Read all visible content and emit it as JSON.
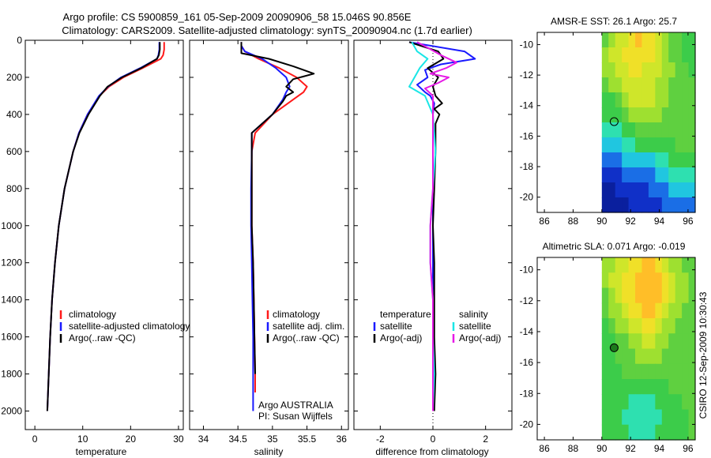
{
  "header": {
    "title_line1": "Argo profile: CS 5900859_161 05-Sep-2009 20090906_58 15.046S 90.856E",
    "title_line2": "Climatology: CARS2009. Satellite-adjusted climatology: synTS_20090904.nc (1.7d earlier)"
  },
  "colors": {
    "red": "#ff1a1a",
    "blue": "#1a1aff",
    "black": "#000000",
    "cyan": "#1ae6e6",
    "magenta": "#e61ae6"
  },
  "chart_data": [
    {
      "type": "line",
      "id": "temperature",
      "xlabel": "temperature",
      "xlim": [
        -2,
        31
      ],
      "ylim": [
        2100,
        0
      ],
      "xticks": [
        0,
        10,
        20,
        30
      ],
      "yticks": [
        0,
        200,
        400,
        600,
        800,
        1000,
        1200,
        1400,
        1600,
        1800,
        2000
      ],
      "series": [
        {
          "name": "climatology",
          "color": "red",
          "depth": [
            10,
            50,
            80,
            100,
            150,
            200,
            250,
            300,
            400,
            500,
            600,
            800,
            1000,
            1200,
            1400,
            1600,
            1800,
            2000
          ],
          "values": [
            27.0,
            27.0,
            26.8,
            26.3,
            22.5,
            18.5,
            15.5,
            13.5,
            11.0,
            9.2,
            8.0,
            6.2,
            5.0,
            4.2,
            3.6,
            3.2,
            2.9,
            2.6
          ]
        },
        {
          "name": "satellite-adjusted climatology",
          "color": "blue",
          "depth": [
            10,
            50,
            80,
            100,
            150,
            200,
            250,
            300,
            400,
            500,
            600,
            800,
            1000,
            1200,
            1400,
            1600,
            1800,
            2000
          ],
          "values": [
            26.0,
            26.0,
            25.8,
            25.5,
            22.0,
            18.0,
            15.3,
            13.4,
            11.0,
            9.2,
            8.0,
            6.2,
            5.0,
            4.2,
            3.6,
            3.2,
            2.9,
            2.6
          ]
        },
        {
          "name": "Argo(..raw -QC)",
          "color": "black",
          "depth": [
            10,
            50,
            80,
            100,
            150,
            200,
            250,
            300,
            400,
            500,
            600,
            800,
            1000,
            1200,
            1400,
            1600,
            1800,
            2000
          ],
          "values": [
            26.1,
            26.1,
            25.9,
            25.5,
            22.2,
            18.2,
            15.2,
            13.6,
            11.2,
            9.3,
            8.0,
            6.2,
            5.0,
            4.2,
            3.6,
            3.2,
            2.9,
            2.6
          ]
        }
      ],
      "legend": {
        "position": "lower-right",
        "entries": [
          "climatology",
          "satellite-adjusted climatology",
          "Argo(..raw -QC)"
        ]
      }
    },
    {
      "type": "line",
      "id": "salinity",
      "xlabel": "salinity",
      "xlim": [
        33.8,
        36.1
      ],
      "ylim": [
        2100,
        0
      ],
      "xticks": [
        34,
        34.5,
        35,
        35.5,
        36
      ],
      "yticks": [
        0,
        200,
        400,
        600,
        800,
        1000,
        1200,
        1400,
        1600,
        1800,
        2000
      ],
      "series": [
        {
          "name": "climatology",
          "color": "red",
          "depth": [
            10,
            30,
            60,
            100,
            150,
            200,
            250,
            280,
            320,
            400,
            500,
            600,
            800,
            1000,
            1200,
            1400,
            1600,
            1800,
            1900
          ],
          "values": [
            34.55,
            34.55,
            34.6,
            34.8,
            35.1,
            35.35,
            35.5,
            35.45,
            35.3,
            35.0,
            34.75,
            34.7,
            34.7,
            34.7,
            34.72,
            34.73,
            34.74,
            34.75,
            34.75
          ]
        },
        {
          "name": "satellite adj. clim.",
          "color": "blue",
          "depth": [
            10,
            30,
            60,
            100,
            150,
            200,
            250,
            280,
            320,
            400,
            500,
            600,
            800,
            1000,
            1200,
            1400,
            1600,
            1800,
            2000
          ],
          "values": [
            34.55,
            34.55,
            34.6,
            34.85,
            35.05,
            35.2,
            35.25,
            35.2,
            35.15,
            35.0,
            34.7,
            34.7,
            34.69,
            34.69,
            34.7,
            34.71,
            34.72,
            34.72,
            34.72
          ]
        },
        {
          "name": "Argo(..raw -QC)",
          "color": "black",
          "depth": [
            10,
            40,
            70,
            100,
            140,
            180,
            210,
            250,
            280,
            300,
            330,
            400,
            500,
            600,
            800,
            1000,
            1200,
            1400,
            1600,
            1800
          ],
          "values": [
            34.55,
            34.55,
            34.55,
            34.95,
            35.3,
            35.6,
            35.3,
            35.2,
            35.3,
            35.2,
            35.15,
            35.0,
            34.7,
            34.7,
            34.7,
            34.7,
            34.72,
            34.73,
            34.74,
            34.75
          ]
        }
      ],
      "legend": {
        "position": "lower-right",
        "entries": [
          "climatology",
          "satellite adj. clim.",
          "Argo(..raw -QC)"
        ]
      },
      "annotation": {
        "line1": "Argo AUSTRALIA",
        "line2": "PI: Susan Wijffels"
      }
    },
    {
      "type": "line",
      "id": "difference",
      "xlabel": "difference from climatology",
      "xlim": [
        -3,
        3
      ],
      "ylim": [
        2100,
        0
      ],
      "xticks": [
        -2,
        0,
        2
      ],
      "yticks": [
        0,
        200,
        400,
        600,
        800,
        1000,
        1200,
        1400,
        1600,
        1800,
        2000
      ],
      "series": [
        {
          "name": "temperature satellite",
          "color": "blue",
          "depth": [
            10,
            60,
            100,
            130,
            160,
            200,
            240,
            280,
            300,
            340,
            400,
            500,
            600,
            800,
            1000,
            1200,
            1400,
            1600,
            1800,
            2000
          ],
          "values": [
            -0.9,
            1.2,
            1.6,
            0.3,
            -0.3,
            -0.2,
            -0.6,
            -0.3,
            -0.1,
            0.05,
            0.0,
            0.0,
            0.0,
            0.0,
            0.0,
            0.0,
            0.0,
            0.0,
            0.0,
            0.0
          ]
        },
        {
          "name": "temperature Argo(-adj)",
          "color": "black",
          "depth": [
            10,
            60,
            100,
            150,
            200,
            250,
            300,
            340,
            370,
            400,
            450,
            500,
            600,
            800,
            1000,
            1200,
            1400,
            1600,
            1800,
            2000
          ],
          "values": [
            -0.9,
            0.2,
            0.4,
            -0.2,
            0.2,
            0.0,
            0.1,
            0.35,
            0.05,
            0.25,
            0.1,
            0.1,
            0.1,
            0.05,
            0.0,
            0.05,
            0.05,
            0.05,
            0.1,
            0.05
          ]
        },
        {
          "name": "salinity satellite",
          "color": "cyan",
          "depth": [
            10,
            60,
            100,
            150,
            200,
            250,
            300,
            400,
            500,
            600,
            800,
            1000,
            1200,
            1400,
            1600,
            1800,
            2000
          ],
          "values": [
            -0.8,
            -0.6,
            -0.2,
            -0.5,
            -0.7,
            -0.9,
            -0.3,
            0.0,
            0.05,
            0.1,
            0.0,
            -0.1,
            -0.1,
            0.0,
            0.0,
            0.05,
            0.0
          ]
        },
        {
          "name": "salinity Argo(-adj)",
          "color": "magenta",
          "depth": [
            10,
            40,
            80,
            120,
            150,
            180,
            200,
            230,
            260,
            300,
            400,
            500,
            600,
            800,
            1000,
            1200,
            1400,
            1600,
            1800,
            2000
          ],
          "values": [
            -0.6,
            -0.2,
            0.3,
            0.9,
            0.5,
            -0.1,
            0.6,
            0.2,
            -0.3,
            0.0,
            0.0,
            0.0,
            0.0,
            0.0,
            -0.1,
            -0.1,
            0.0,
            0.0,
            0.0,
            0.0
          ]
        }
      ],
      "legend": {
        "position": "lower-right",
        "temperature_heading": "temperature",
        "salinity_heading": "salinity",
        "entries": [
          "satellite",
          "Argo(-adj)",
          "satellite",
          "Argo(-adj)"
        ]
      }
    },
    {
      "type": "heatmap",
      "id": "sst-map",
      "title": "AMSR-E SST: 26.1 Argo: 25.7",
      "xlim": [
        85.5,
        96.5
      ],
      "ylim": [
        -21,
        -9.2
      ],
      "xticks": [
        86,
        88,
        90,
        92,
        94,
        96
      ],
      "yticks": [
        -10,
        -12,
        -14,
        -16,
        -18,
        -20
      ],
      "data_start_lon": 90,
      "rows": [
        [
          2,
          3,
          4,
          4,
          5,
          6,
          5,
          5,
          4,
          3,
          2,
          2,
          1,
          1
        ],
        [
          3,
          4,
          4,
          5,
          5,
          5,
          5,
          5,
          4,
          3,
          2,
          2,
          1,
          1
        ],
        [
          3,
          3,
          4,
          4,
          5,
          5,
          4,
          4,
          4,
          3,
          3,
          2,
          2,
          1
        ],
        [
          2,
          3,
          3,
          4,
          4,
          4,
          4,
          4,
          3,
          3,
          2,
          2,
          2,
          2
        ],
        [
          1,
          1,
          2,
          3,
          4,
          4,
          4,
          4,
          3,
          3,
          2,
          2,
          2,
          2
        ],
        [
          1,
          1,
          1,
          2,
          3,
          3,
          3,
          3,
          3,
          2,
          2,
          2,
          2,
          2
        ],
        [
          0,
          0,
          0,
          1,
          1,
          2,
          2,
          2,
          2,
          2,
          2,
          2,
          2,
          2
        ],
        [
          -1,
          -1,
          -1,
          0,
          0,
          1,
          1,
          1,
          1,
          1,
          1,
          2,
          2,
          2
        ],
        [
          -2,
          -2,
          -2,
          -1,
          -1,
          -1,
          -1,
          -1,
          0,
          0,
          1,
          1,
          1,
          1
        ],
        [
          -3,
          -3,
          -3,
          -2,
          -2,
          -2,
          -2,
          -2,
          -1,
          -1,
          0,
          0,
          0,
          0
        ],
        [
          -4,
          -4,
          -3,
          -3,
          -3,
          -3,
          -3,
          -2,
          -2,
          -2,
          -1,
          -1,
          -1,
          -1
        ],
        [
          -4,
          -4,
          -4,
          -4,
          -3,
          -3,
          -3,
          -3,
          -3,
          -2,
          -2,
          -2,
          -2,
          -2
        ]
      ],
      "marker": {
        "lon": 90.856,
        "lat": -15.046
      }
    },
    {
      "type": "heatmap",
      "id": "sla-map",
      "title": "Altimetric SLA: 0.071 Argo: -0.019",
      "xlim": [
        85.5,
        96.5
      ],
      "ylim": [
        -21,
        -9.2
      ],
      "xticks": [
        86,
        88,
        90,
        92,
        94,
        96
      ],
      "yticks": [
        -10,
        -12,
        -14,
        -16,
        -18,
        -20
      ],
      "data_start_lon": 90,
      "rows": [
        [
          3,
          3,
          4,
          4,
          5,
          5,
          6,
          6,
          5,
          4,
          3,
          3,
          2,
          2
        ],
        [
          3,
          4,
          4,
          5,
          5,
          6,
          6,
          6,
          6,
          5,
          4,
          3,
          3,
          2
        ],
        [
          2,
          3,
          4,
          5,
          5,
          6,
          6,
          6,
          6,
          5,
          4,
          3,
          3,
          2
        ],
        [
          2,
          3,
          3,
          4,
          5,
          5,
          6,
          6,
          5,
          4,
          3,
          3,
          2,
          2
        ],
        [
          1,
          2,
          3,
          3,
          4,
          4,
          5,
          5,
          4,
          3,
          3,
          2,
          2,
          2
        ],
        [
          1,
          1,
          2,
          2,
          3,
          3,
          4,
          4,
          3,
          3,
          2,
          2,
          2,
          2
        ],
        [
          1,
          1,
          2,
          2,
          2,
          3,
          3,
          3,
          3,
          2,
          2,
          2,
          2,
          2
        ],
        [
          1,
          1,
          1,
          2,
          2,
          2,
          2,
          2,
          2,
          2,
          2,
          2,
          2,
          2
        ],
        [
          1,
          1,
          1,
          1,
          1,
          1,
          1,
          1,
          1,
          1,
          2,
          2,
          2,
          2
        ],
        [
          1,
          1,
          1,
          1,
          0,
          0,
          0,
          0,
          1,
          1,
          1,
          1,
          2,
          2
        ],
        [
          1,
          1,
          1,
          0,
          0,
          0,
          0,
          0,
          0,
          1,
          1,
          1,
          1,
          2
        ],
        [
          1,
          1,
          1,
          1,
          0,
          0,
          0,
          0,
          1,
          1,
          1,
          1,
          1,
          2
        ]
      ],
      "marker": {
        "lon": 90.856,
        "lat": -15.046
      }
    }
  ],
  "side_text": "CSIRO 12-Sep-2009 10:30:43"
}
